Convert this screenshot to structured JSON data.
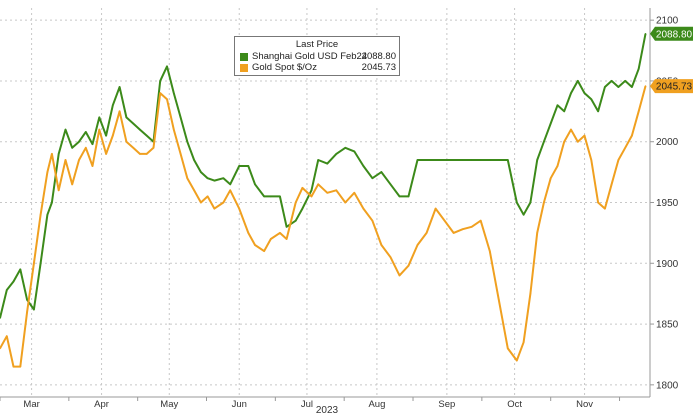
{
  "chart_data": {
    "type": "line",
    "title": "",
    "xlabel": "2023",
    "ylabel": "",
    "ylim": [
      1790,
      2110
    ],
    "yticks": [
      1800,
      1850,
      1900,
      1950,
      2000,
      2050,
      2100
    ],
    "ytick_labels": [
      "1800",
      "1850",
      "1900",
      "1950",
      "2000",
      "2050",
      "2100"
    ],
    "xtick_labels": [
      "Mar",
      "Apr",
      "May",
      "Jun",
      "Jul",
      "Aug",
      "Sep",
      "Oct",
      "Nov"
    ],
    "xtick_days": [
      14,
      45,
      75,
      106,
      136,
      167,
      198,
      228,
      259
    ],
    "x_start": "2023-02-15",
    "x_end": "2023-11-30",
    "grid": true,
    "legend": {
      "title": "Last Price",
      "placement": "top-center"
    },
    "series": [
      {
        "name": "Shanghai Gold USD Feb24",
        "last_value": "2088.80",
        "color": "#3c8a1a",
        "x": [
          "2023-02-15",
          "2023-02-18",
          "2023-02-21",
          "2023-02-24",
          "2023-02-27",
          "2023-03-02",
          "2023-03-05",
          "2023-03-08",
          "2023-03-10",
          "2023-03-13",
          "2023-03-16",
          "2023-03-19",
          "2023-03-22",
          "2023-03-25",
          "2023-03-28",
          "2023-03-31",
          "2023-04-03",
          "2023-04-06",
          "2023-04-09",
          "2023-04-12",
          "2023-04-15",
          "2023-04-18",
          "2023-04-21",
          "2023-04-24",
          "2023-04-27",
          "2023-04-30",
          "2023-05-03",
          "2023-05-06",
          "2023-05-09",
          "2023-05-12",
          "2023-05-15",
          "2023-05-18",
          "2023-05-21",
          "2023-05-25",
          "2023-05-28",
          "2023-06-01",
          "2023-06-05",
          "2023-06-08",
          "2023-06-12",
          "2023-06-15",
          "2023-06-19",
          "2023-06-22",
          "2023-06-26",
          "2023-06-29",
          "2023-07-03",
          "2023-07-06",
          "2023-07-10",
          "2023-07-14",
          "2023-07-18",
          "2023-07-22",
          "2023-07-26",
          "2023-07-30",
          "2023-08-03",
          "2023-08-07",
          "2023-08-11",
          "2023-08-15",
          "2023-08-19",
          "2023-08-23",
          "2023-08-27",
          "2023-08-31",
          "2023-09-04",
          "2023-09-08",
          "2023-09-12",
          "2023-09-16",
          "2023-09-20",
          "2023-09-24",
          "2023-09-28",
          "2023-10-02",
          "2023-10-05",
          "2023-10-08",
          "2023-10-11",
          "2023-10-14",
          "2023-10-17",
          "2023-10-20",
          "2023-10-23",
          "2023-10-26",
          "2023-10-29",
          "2023-11-01",
          "2023-11-04",
          "2023-11-07",
          "2023-11-10",
          "2023-11-13",
          "2023-11-16",
          "2023-11-19",
          "2023-11-22",
          "2023-11-25",
          "2023-11-28"
        ],
        "y": [
          1855,
          1878,
          1885,
          1895,
          1870,
          1862,
          1900,
          1940,
          1950,
          1990,
          2010,
          1995,
          2000,
          2008,
          1998,
          2020,
          2005,
          2030,
          2045,
          2020,
          2015,
          2010,
          2005,
          2000,
          2050,
          2062,
          2040,
          2020,
          2000,
          1985,
          1975,
          1970,
          1968,
          1970,
          1965,
          1980,
          1980,
          1965,
          1955,
          1955,
          1955,
          1930,
          1935,
          1945,
          1960,
          1985,
          1982,
          1990,
          1995,
          1992,
          1980,
          1970,
          1975,
          1965,
          1955,
          1955,
          1985,
          1985,
          1985,
          1985,
          1985,
          1985,
          1985,
          1985,
          1985,
          1985,
          1985,
          1950,
          1940,
          1950,
          1985,
          2000,
          2015,
          2030,
          2025,
          2040,
          2050,
          2040,
          2035,
          2025,
          2045,
          2050,
          2045,
          2050,
          2045,
          2060,
          2088.8
        ]
      },
      {
        "name": "Gold Spot $/Oz",
        "last_value": "2045.73",
        "color": "#f0a020",
        "x": [
          "2023-02-15",
          "2023-02-18",
          "2023-02-21",
          "2023-02-24",
          "2023-02-27",
          "2023-03-02",
          "2023-03-05",
          "2023-03-08",
          "2023-03-10",
          "2023-03-13",
          "2023-03-16",
          "2023-03-19",
          "2023-03-22",
          "2023-03-25",
          "2023-03-28",
          "2023-03-31",
          "2023-04-03",
          "2023-04-06",
          "2023-04-09",
          "2023-04-12",
          "2023-04-15",
          "2023-04-18",
          "2023-04-21",
          "2023-04-24",
          "2023-04-27",
          "2023-04-30",
          "2023-05-03",
          "2023-05-06",
          "2023-05-09",
          "2023-05-12",
          "2023-05-15",
          "2023-05-18",
          "2023-05-21",
          "2023-05-25",
          "2023-05-28",
          "2023-06-01",
          "2023-06-05",
          "2023-06-08",
          "2023-06-12",
          "2023-06-15",
          "2023-06-19",
          "2023-06-22",
          "2023-06-26",
          "2023-06-29",
          "2023-07-03",
          "2023-07-06",
          "2023-07-10",
          "2023-07-14",
          "2023-07-18",
          "2023-07-22",
          "2023-07-26",
          "2023-07-30",
          "2023-08-03",
          "2023-08-07",
          "2023-08-11",
          "2023-08-15",
          "2023-08-19",
          "2023-08-23",
          "2023-08-27",
          "2023-08-31",
          "2023-09-04",
          "2023-09-08",
          "2023-09-12",
          "2023-09-16",
          "2023-09-20",
          "2023-09-24",
          "2023-09-28",
          "2023-10-02",
          "2023-10-05",
          "2023-10-08",
          "2023-10-11",
          "2023-10-14",
          "2023-10-17",
          "2023-10-20",
          "2023-10-23",
          "2023-10-26",
          "2023-10-29",
          "2023-11-01",
          "2023-11-04",
          "2023-11-07",
          "2023-11-10",
          "2023-11-13",
          "2023-11-16",
          "2023-11-19",
          "2023-11-22",
          "2023-11-25",
          "2023-11-28"
        ],
        "y": [
          1830,
          1840,
          1815,
          1815,
          1860,
          1900,
          1940,
          1975,
          1990,
          1960,
          1985,
          1965,
          1985,
          1995,
          1980,
          2010,
          1990,
          2005,
          2025,
          2000,
          1995,
          1990,
          1990,
          1995,
          2040,
          2035,
          2010,
          1990,
          1970,
          1960,
          1950,
          1955,
          1945,
          1950,
          1960,
          1945,
          1925,
          1915,
          1910,
          1920,
          1925,
          1920,
          1950,
          1962,
          1955,
          1965,
          1958,
          1960,
          1950,
          1958,
          1945,
          1935,
          1915,
          1905,
          1890,
          1898,
          1915,
          1925,
          1945,
          1935,
          1925,
          1928,
          1930,
          1935,
          1910,
          1870,
          1830,
          1820,
          1835,
          1875,
          1925,
          1950,
          1970,
          1980,
          2000,
          2010,
          2000,
          2005,
          1985,
          1950,
          1945,
          1965,
          1985,
          1995,
          2005,
          2025,
          2045.73
        ]
      }
    ]
  }
}
